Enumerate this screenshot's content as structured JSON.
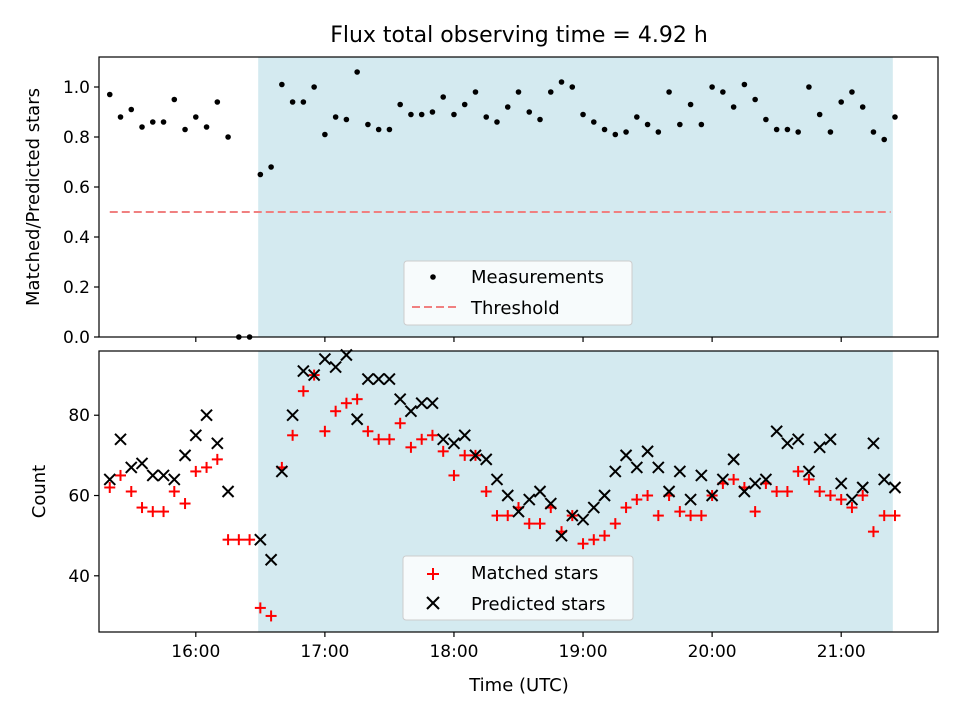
{
  "title": "Flux total observing time = 4.92 h",
  "xlabel": "Time (UTC)",
  "x_ticks": [
    "16:00",
    "17:00",
    "18:00",
    "19:00",
    "20:00",
    "21:00"
  ],
  "colors": {
    "shade": "#d4eaf0",
    "measurement": "#000000",
    "threshold": "#f08080",
    "matched": "#ff0000",
    "predicted": "#000000"
  },
  "chart_data": [
    {
      "type": "scatter",
      "ylabel": "Matched/Predicted stars",
      "ylim": [
        0,
        1.12
      ],
      "y_ticks": [
        "0.0",
        "0.2",
        "0.4",
        "0.6",
        "0.8",
        "1.0"
      ],
      "xlim": [
        "15:15",
        "21:45"
      ],
      "shaded_span": [
        "16:29",
        "21:24"
      ],
      "threshold": {
        "y": 0.5,
        "x": [
          "15:20",
          "21:23"
        ]
      },
      "legend": {
        "location": "lower-center",
        "entries": [
          "Measurements",
          "Threshold"
        ]
      },
      "series": [
        {
          "name": "Measurements",
          "x": [
            "15:20",
            "15:25",
            "15:30",
            "15:35",
            "15:40",
            "15:45",
            "15:50",
            "15:55",
            "16:00",
            "16:05",
            "16:10",
            "16:15",
            "16:20",
            "16:25",
            "16:30",
            "16:35",
            "16:40",
            "16:45",
            "16:50",
            "16:55",
            "17:00",
            "17:05",
            "17:10",
            "17:15",
            "17:20",
            "17:25",
            "17:30",
            "17:35",
            "17:40",
            "17:45",
            "17:50",
            "17:55",
            "18:00",
            "18:05",
            "18:10",
            "18:15",
            "18:20",
            "18:25",
            "18:30",
            "18:35",
            "18:40",
            "18:45",
            "18:50",
            "18:55",
            "19:00",
            "19:05",
            "19:10",
            "19:15",
            "19:20",
            "19:25",
            "19:30",
            "19:35",
            "19:40",
            "19:45",
            "19:50",
            "19:55",
            "20:00",
            "20:05",
            "20:10",
            "20:15",
            "20:20",
            "20:25",
            "20:30",
            "20:35",
            "20:40",
            "20:45",
            "20:50",
            "20:55",
            "21:00",
            "21:05",
            "21:10",
            "21:15",
            "21:20",
            "21:25"
          ],
          "y": [
            0.97,
            0.88,
            0.91,
            0.84,
            0.86,
            0.86,
            0.95,
            0.83,
            0.88,
            0.84,
            0.94,
            0.8,
            0.0,
            0.0,
            0.65,
            0.68,
            1.01,
            0.94,
            0.94,
            1.0,
            0.81,
            0.88,
            0.87,
            1.06,
            0.85,
            0.83,
            0.83,
            0.93,
            0.89,
            0.89,
            0.9,
            0.96,
            0.89,
            0.93,
            0.98,
            0.88,
            0.86,
            0.92,
            0.98,
            0.9,
            0.87,
            0.98,
            1.02,
            1.0,
            0.89,
            0.86,
            0.83,
            0.81,
            0.82,
            0.88,
            0.85,
            0.82,
            0.98,
            0.85,
            0.93,
            0.85,
            1.0,
            0.98,
            0.92,
            1.01,
            0.95,
            0.87,
            0.83,
            0.83,
            0.82,
            1.0,
            0.89,
            0.82,
            0.94,
            0.98,
            0.92,
            0.82,
            0.79,
            0.88
          ]
        }
      ]
    },
    {
      "type": "scatter",
      "ylabel": "Count",
      "xlabel": "Time (UTC)",
      "ylim": [
        26,
        96
      ],
      "y_ticks": [
        "40",
        "60",
        "80"
      ],
      "xlim": [
        "15:15",
        "21:45"
      ],
      "shaded_span": [
        "16:29",
        "21:24"
      ],
      "legend": {
        "location": "lower-center",
        "entries": [
          "Matched stars",
          "Predicted stars"
        ]
      },
      "series": [
        {
          "name": "Matched stars",
          "marker": "+",
          "x": [
            "15:20",
            "15:25",
            "15:30",
            "15:35",
            "15:40",
            "15:45",
            "15:50",
            "15:55",
            "16:00",
            "16:05",
            "16:10",
            "16:15",
            "16:20",
            "16:25",
            "16:30",
            "16:35",
            "16:40",
            "16:45",
            "16:50",
            "16:55",
            "17:00",
            "17:05",
            "17:10",
            "17:15",
            "17:20",
            "17:25",
            "17:30",
            "17:35",
            "17:40",
            "17:45",
            "17:50",
            "17:55",
            "18:00",
            "18:05",
            "18:10",
            "18:15",
            "18:20",
            "18:25",
            "18:30",
            "18:35",
            "18:40",
            "18:45",
            "18:50",
            "18:55",
            "19:00",
            "19:05",
            "19:10",
            "19:15",
            "19:20",
            "19:25",
            "19:30",
            "19:35",
            "19:40",
            "19:45",
            "19:50",
            "19:55",
            "20:00",
            "20:05",
            "20:10",
            "20:15",
            "20:20",
            "20:25",
            "20:30",
            "20:35",
            "20:40",
            "20:45",
            "20:50",
            "20:55",
            "21:00",
            "21:05",
            "21:10",
            "21:15",
            "21:20",
            "21:25"
          ],
          "y": [
            62,
            65,
            61,
            57,
            56,
            56,
            61,
            58,
            66,
            67,
            69,
            49,
            49,
            49,
            32,
            30,
            67,
            75,
            86,
            90,
            76,
            81,
            83,
            84,
            76,
            74,
            74,
            78,
            72,
            74,
            75,
            71,
            65,
            70,
            70,
            61,
            55,
            55,
            57,
            53,
            53,
            57,
            51,
            55,
            48,
            49,
            50,
            53,
            57,
            59,
            60,
            55,
            60,
            56,
            55,
            55,
            60,
            63,
            64,
            62,
            56,
            63,
            61,
            61,
            66,
            64,
            61,
            60,
            59,
            57,
            60,
            51,
            55,
            55
          ]
        },
        {
          "name": "Predicted stars",
          "marker": "x",
          "x": [
            "15:20",
            "15:25",
            "15:30",
            "15:35",
            "15:40",
            "15:45",
            "15:50",
            "15:55",
            "16:00",
            "16:05",
            "16:10",
            "16:15",
            "16:30",
            "16:35",
            "16:40",
            "16:45",
            "16:50",
            "16:55",
            "17:00",
            "17:05",
            "17:10",
            "17:15",
            "17:20",
            "17:25",
            "17:30",
            "17:35",
            "17:40",
            "17:45",
            "17:50",
            "17:55",
            "18:00",
            "18:05",
            "18:10",
            "18:15",
            "18:20",
            "18:25",
            "18:30",
            "18:35",
            "18:40",
            "18:45",
            "18:50",
            "18:55",
            "19:00",
            "19:05",
            "19:10",
            "19:15",
            "19:20",
            "19:25",
            "19:30",
            "19:35",
            "19:40",
            "19:45",
            "19:50",
            "19:55",
            "20:00",
            "20:05",
            "20:10",
            "20:15",
            "20:20",
            "20:25",
            "20:30",
            "20:35",
            "20:40",
            "20:45",
            "20:50",
            "20:55",
            "21:00",
            "21:05",
            "21:10",
            "21:15",
            "21:20",
            "21:25"
          ],
          "y": [
            64,
            74,
            67,
            68,
            65,
            65,
            64,
            70,
            75,
            80,
            73,
            61,
            49,
            44,
            66,
            80,
            91,
            90,
            94,
            92,
            95,
            79,
            89,
            89,
            89,
            84,
            81,
            83,
            83,
            74,
            73,
            75,
            70,
            69,
            64,
            60,
            56,
            59,
            61,
            58,
            50,
            55,
            54,
            57,
            60,
            66,
            70,
            67,
            71,
            67,
            61,
            66,
            59,
            65,
            60,
            64,
            69,
            61,
            63,
            64,
            76,
            73,
            74,
            66,
            72,
            74,
            63,
            59,
            62,
            73,
            64,
            62
          ]
        }
      ]
    }
  ]
}
